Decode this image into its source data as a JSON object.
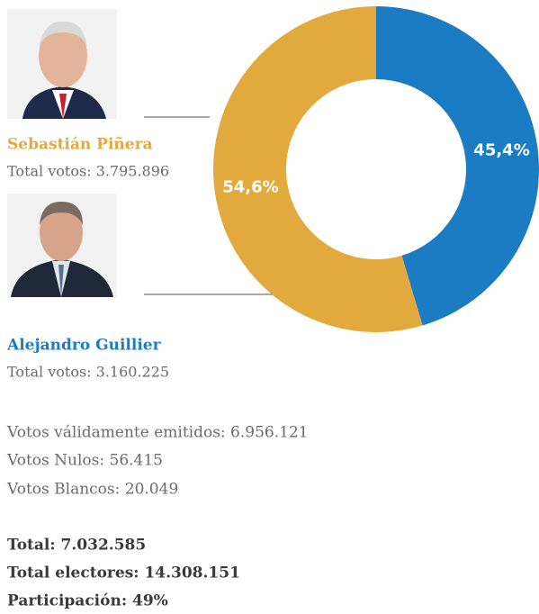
{
  "chart_data": {
    "type": "donut",
    "categories": [
      "Sebastián Piñera",
      "Alejandro Guillier"
    ],
    "values": [
      54.6,
      45.4
    ],
    "value_labels": [
      "54,6%",
      "45,4%"
    ],
    "colors": [
      "#e2aa3c",
      "#1c7cc3"
    ]
  },
  "candidate_totals": [
    "Total votos: 3.795.896",
    "Total votos: 3.160.225"
  ],
  "summary": [
    "Votos válidamente emitidos: 6.956.121",
    "Votos Nulos: 56.415",
    "Votos Blancos: 20.049"
  ],
  "totals": [
    "Total: 7.032.585",
    "Total electores: 14.308.151",
    "Participación: 49%"
  ]
}
